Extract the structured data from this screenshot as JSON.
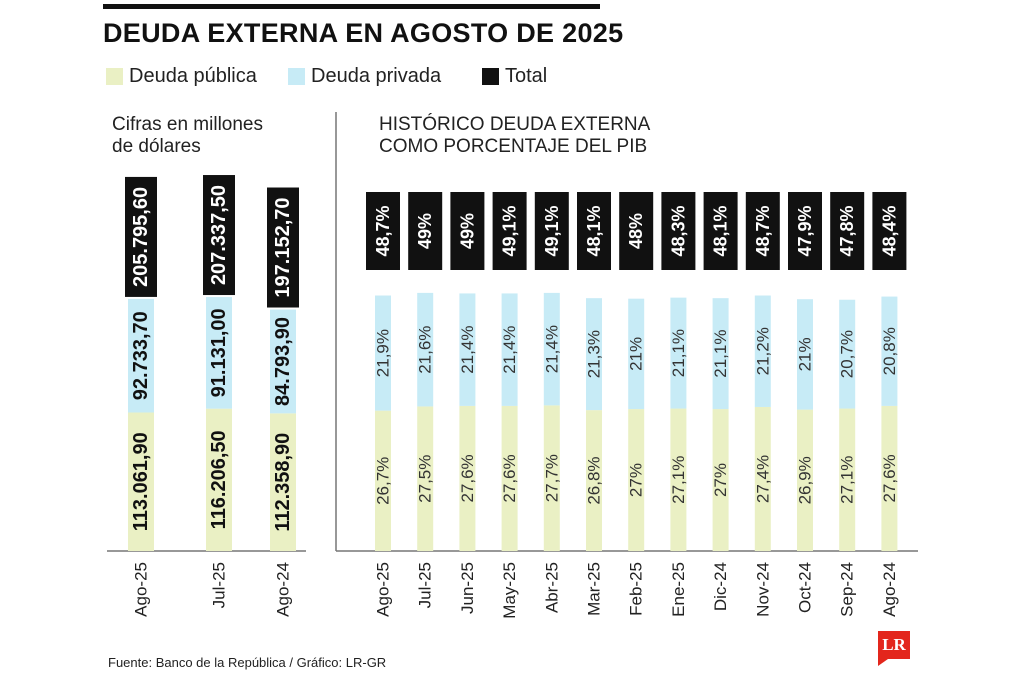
{
  "header": {
    "title": "DEUDA EXTERNA EN AGOSTO DE 2025"
  },
  "legend": [
    {
      "label": "Deuda pública",
      "color": "#eaf0c4"
    },
    {
      "label": "Deuda privada",
      "color": "#c7ebf6"
    },
    {
      "label": "Total",
      "color": "#111111"
    }
  ],
  "left_panel": {
    "subtitle_line1": "Cifras en millones",
    "subtitle_line2": "de dólares"
  },
  "right_panel": {
    "subtitle_line1": "HISTÓRICO DEUDA EXTERNA",
    "subtitle_line2": "COMO PORCENTAJE DEL PIB"
  },
  "footer": {
    "source": "Fuente: Banco de la República / Gráfico: LR-GR"
  },
  "logo": {
    "text": "LR"
  },
  "colors": {
    "publica": "#eaf0c4",
    "privada": "#c7ebf6",
    "total": "#111111"
  },
  "chart_data": [
    {
      "type": "bar",
      "stacked": true,
      "unit": "millones de dólares",
      "categories": [
        "Ago-25",
        "Jul-25",
        "Ago-24"
      ],
      "series": [
        {
          "name": "Deuda pública",
          "values": [
            113061.9,
            116206.5,
            112358.9
          ],
          "labels": [
            "113.061,90",
            "116.206,50",
            "112.358,90"
          ]
        },
        {
          "name": "Deuda privada",
          "values": [
            92733.7,
            91131.0,
            84793.9
          ],
          "labels": [
            "92.733,70",
            "91.131,00",
            "84.793,90"
          ]
        }
      ],
      "totals": [
        205795.6,
        207337.5,
        197152.7
      ],
      "total_labels": [
        "205.795,60",
        "207.337,50",
        "197.152,70"
      ]
    },
    {
      "type": "bar",
      "stacked": true,
      "unit": "% del PIB",
      "categories": [
        "Ago-25",
        "Jul-25",
        "Jun-25",
        "May-25",
        "Abr-25",
        "Mar-25",
        "Feb-25",
        "Ene-25",
        "Dic-24",
        "Nov-24",
        "Oct-24",
        "Sep-24",
        "Ago-24"
      ],
      "series": [
        {
          "name": "Deuda pública",
          "values": [
            26.7,
            27.5,
            27.6,
            27.6,
            27.7,
            26.8,
            27,
            27.1,
            27,
            27.4,
            26.9,
            27.1,
            27.6
          ],
          "labels": [
            "26,7%",
            "27,5%",
            "27,6%",
            "27,6%",
            "27,7%",
            "26,8%",
            "27%",
            "27,1%",
            "27%",
            "27,4%",
            "26,9%",
            "27,1%",
            "27,6%"
          ]
        },
        {
          "name": "Deuda privada",
          "values": [
            21.9,
            21.6,
            21.4,
            21.4,
            21.4,
            21.3,
            21,
            21.1,
            21.1,
            21.2,
            21,
            20.7,
            20.8
          ],
          "labels": [
            "21,9%",
            "21,6%",
            "21,4%",
            "21,4%",
            "21,4%",
            "21,3%",
            "21%",
            "21,1%",
            "21,1%",
            "21,2%",
            "21%",
            "20,7%",
            "20,8%"
          ]
        }
      ],
      "totals": [
        48.7,
        49,
        49,
        49.1,
        49.1,
        48.1,
        48,
        48.3,
        48.1,
        48.7,
        47.9,
        47.8,
        48.4
      ],
      "total_labels": [
        "48,7%",
        "49%",
        "49%",
        "49,1%",
        "49,1%",
        "48,1%",
        "48%",
        "48,3%",
        "48,1%",
        "48,7%",
        "47,9%",
        "47,8%",
        "48,4%"
      ]
    }
  ]
}
